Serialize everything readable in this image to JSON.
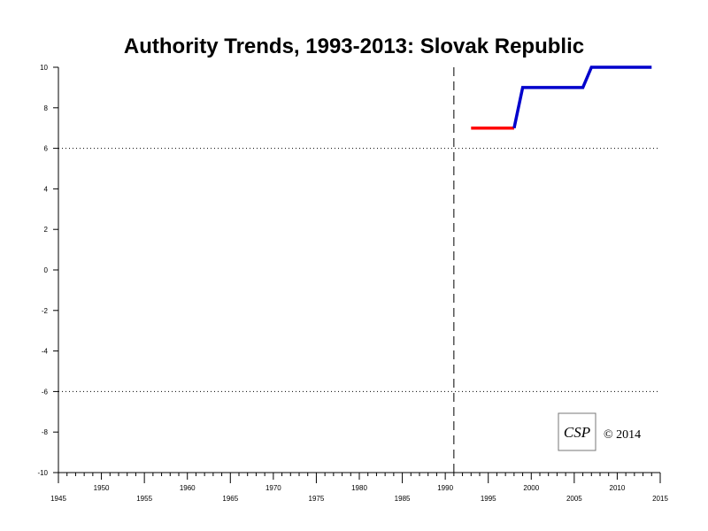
{
  "chart_data": {
    "type": "line",
    "title": "Authority Trends, 1993-2013: Slovak Republic",
    "xlabel": "",
    "ylabel": "",
    "xlim": [
      1945,
      2015
    ],
    "ylim": [
      -10,
      10
    ],
    "x_ticks_bottom": [
      1945,
      1955,
      1965,
      1975,
      1985,
      1995,
      2005,
      2015
    ],
    "x_ticks_top": [
      1950,
      1960,
      1970,
      1980,
      1990,
      2000,
      2010
    ],
    "y_ticks": [
      10,
      8,
      6,
      4,
      2,
      0,
      -2,
      -4,
      -6,
      -8,
      -10
    ],
    "reference_lines": [
      {
        "axis": "y",
        "value": 6,
        "style": "dotted"
      },
      {
        "axis": "y",
        "value": -6,
        "style": "dotted"
      },
      {
        "axis": "x",
        "value": 1991,
        "style": "dashed"
      }
    ],
    "grid": false,
    "series": [
      {
        "color": "#ff0000",
        "points": [
          [
            1993,
            7
          ],
          [
            1998,
            7
          ]
        ]
      },
      {
        "color": "#0000cc",
        "points": [
          [
            1998,
            7
          ],
          [
            1999,
            9
          ],
          [
            2006,
            9
          ],
          [
            2007,
            10
          ],
          [
            2014,
            10
          ]
        ]
      }
    ]
  },
  "footer": {
    "logo_text": "CSP",
    "copyright": "© 2014"
  }
}
